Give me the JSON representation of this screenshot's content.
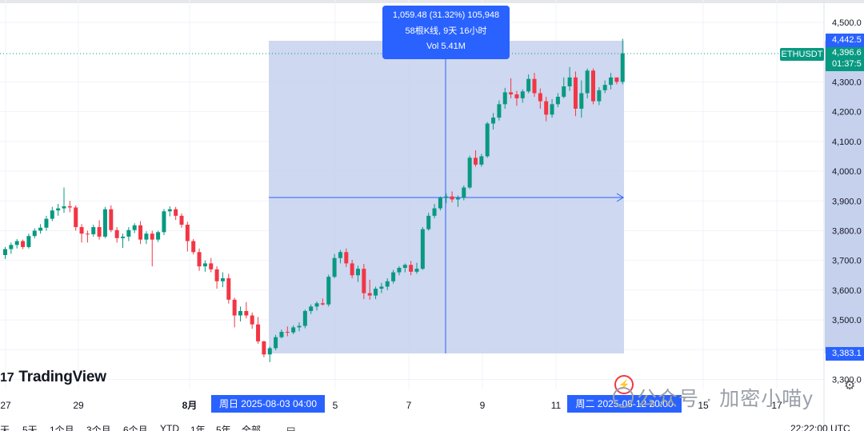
{
  "chart_data": {
    "type": "candlestick",
    "symbol": "ETHUSDT",
    "y_axis": {
      "range": [
        3285,
        4512
      ],
      "ticks": [
        "4,500.0",
        "4,300.0",
        "4,200.0",
        "4,100.0",
        "4,000.0",
        "3,900.0",
        "3,800.0",
        "3,700.0",
        "3,600.0",
        "3,500.0",
        "3,400.0",
        "3,300.0"
      ]
    },
    "x_axis": {
      "ticks": [
        "27",
        "29",
        "8月",
        "5",
        "7",
        "9",
        "11",
        "15",
        "17"
      ]
    },
    "candles": [
      [
        3718,
        3745,
        3705,
        3738
      ],
      [
        3738,
        3760,
        3722,
        3752
      ],
      [
        3752,
        3772,
        3740,
        3765
      ],
      [
        3765,
        3770,
        3738,
        3745
      ],
      [
        3745,
        3790,
        3740,
        3782
      ],
      [
        3782,
        3808,
        3774,
        3800
      ],
      [
        3800,
        3822,
        3790,
        3810
      ],
      [
        3810,
        3850,
        3800,
        3840
      ],
      [
        3840,
        3880,
        3832,
        3868
      ],
      [
        3868,
        3890,
        3850,
        3875
      ],
      [
        3875,
        3945,
        3860,
        3882
      ],
      [
        3882,
        3900,
        3862,
        3878
      ],
      [
        3878,
        3885,
        3800,
        3812
      ],
      [
        3812,
        3822,
        3760,
        3790
      ],
      [
        3790,
        3800,
        3760,
        3788
      ],
      [
        3788,
        3820,
        3780,
        3812
      ],
      [
        3812,
        3835,
        3770,
        3780
      ],
      [
        3780,
        3880,
        3775,
        3872
      ],
      [
        3872,
        3885,
        3795,
        3802
      ],
      [
        3802,
        3812,
        3760,
        3775
      ],
      [
        3775,
        3790,
        3742,
        3780
      ],
      [
        3780,
        3812,
        3765,
        3802
      ],
      [
        3802,
        3825,
        3792,
        3818
      ],
      [
        3818,
        3832,
        3755,
        3770
      ],
      [
        3770,
        3798,
        3755,
        3790
      ],
      [
        3790,
        3800,
        3680,
        3770
      ],
      [
        3770,
        3800,
        3762,
        3795
      ],
      [
        3795,
        3873,
        3785,
        3865
      ],
      [
        3865,
        3882,
        3848,
        3872
      ],
      [
        3872,
        3880,
        3836,
        3850
      ],
      [
        3850,
        3858,
        3810,
        3820
      ],
      [
        3820,
        3830,
        3730,
        3765
      ],
      [
        3765,
        3772,
        3720,
        3728
      ],
      [
        3728,
        3740,
        3665,
        3680
      ],
      [
        3680,
        3700,
        3662,
        3690
      ],
      [
        3690,
        3708,
        3660,
        3670
      ],
      [
        3670,
        3680,
        3605,
        3630
      ],
      [
        3630,
        3660,
        3610,
        3640
      ],
      [
        3640,
        3655,
        3555,
        3568
      ],
      [
        3568,
        3575,
        3475,
        3515
      ],
      [
        3515,
        3545,
        3495,
        3530
      ],
      [
        3530,
        3560,
        3505,
        3515
      ],
      [
        3515,
        3525,
        3470,
        3485
      ],
      [
        3485,
        3510,
        3420,
        3428
      ],
      [
        3428,
        3430,
        3375,
        3384
      ],
      [
        3384,
        3410,
        3358,
        3405
      ],
      [
        3405,
        3450,
        3398,
        3442
      ],
      [
        3442,
        3468,
        3438,
        3460
      ],
      [
        3460,
        3478,
        3445,
        3458
      ],
      [
        3458,
        3482,
        3452,
        3475
      ],
      [
        3475,
        3492,
        3462,
        3480
      ],
      [
        3480,
        3535,
        3472,
        3530
      ],
      [
        3530,
        3552,
        3520,
        3545
      ],
      [
        3545,
        3562,
        3532,
        3556
      ],
      [
        3556,
        3572,
        3548,
        3552
      ],
      [
        3552,
        3652,
        3545,
        3645
      ],
      [
        3645,
        3722,
        3640,
        3708
      ],
      [
        3708,
        3735,
        3690,
        3728
      ],
      [
        3728,
        3740,
        3678,
        3690
      ],
      [
        3690,
        3702,
        3640,
        3650
      ],
      [
        3650,
        3682,
        3628,
        3672
      ],
      [
        3672,
        3688,
        3570,
        3590
      ],
      [
        3590,
        3635,
        3568,
        3582
      ],
      [
        3582,
        3612,
        3570,
        3605
      ],
      [
        3605,
        3625,
        3590,
        3612
      ],
      [
        3612,
        3640,
        3600,
        3630
      ],
      [
        3630,
        3668,
        3622,
        3660
      ],
      [
        3660,
        3680,
        3650,
        3675
      ],
      [
        3675,
        3690,
        3660,
        3685
      ],
      [
        3685,
        3698,
        3650,
        3662
      ],
      [
        3662,
        3692,
        3655,
        3672
      ],
      [
        3672,
        3812,
        3668,
        3805
      ],
      [
        3805,
        3860,
        3800,
        3850
      ],
      [
        3850,
        3890,
        3842,
        3875
      ],
      [
        3875,
        3915,
        3868,
        3910
      ],
      [
        3910,
        3925,
        3892,
        3915
      ],
      [
        3915,
        3932,
        3895,
        3905
      ],
      [
        3905,
        3918,
        3880,
        3910
      ],
      [
        3910,
        3952,
        3902,
        3945
      ],
      [
        3945,
        4052,
        3940,
        4045
      ],
      [
        4045,
        4070,
        4015,
        4022
      ],
      [
        4022,
        4058,
        4015,
        4050
      ],
      [
        4050,
        4165,
        4045,
        4160
      ],
      [
        4160,
        4195,
        4140,
        4180
      ],
      [
        4180,
        4238,
        4170,
        4225
      ],
      [
        4225,
        4280,
        4210,
        4265
      ],
      [
        4265,
        4312,
        4245,
        4258
      ],
      [
        4258,
        4270,
        4220,
        4245
      ],
      [
        4245,
        4275,
        4230,
        4268
      ],
      [
        4268,
        4325,
        4262,
        4310
      ],
      [
        4310,
        4330,
        4250,
        4262
      ],
      [
        4262,
        4278,
        4210,
        4235
      ],
      [
        4235,
        4250,
        4168,
        4190
      ],
      [
        4190,
        4242,
        4180,
        4225
      ],
      [
        4225,
        4262,
        4215,
        4250
      ],
      [
        4250,
        4315,
        4245,
        4285
      ],
      [
        4285,
        4350,
        4270,
        4315
      ],
      [
        4315,
        4335,
        4185,
        4210
      ],
      [
        4210,
        4305,
        4180,
        4262
      ],
      [
        4262,
        4345,
        4245,
        4338
      ],
      [
        4338,
        4345,
        4225,
        4235
      ],
      [
        4235,
        4282,
        4222,
        4272
      ],
      [
        4272,
        4305,
        4262,
        4290
      ],
      [
        4290,
        4330,
        4275,
        4315
      ],
      [
        4315,
        4305,
        4292,
        4300
      ],
      [
        4300,
        4445,
        4292,
        4396
      ]
    ]
  },
  "measure": {
    "line1": "1,059.48 (31.32%) 105,948",
    "line2": "58根K线, 9天 16小时",
    "line3": "Vol 5.41M",
    "start_label": "周日 2025-08-03   04:00",
    "end_label": "周二 2025-08-12   20:00",
    "high_price": "4,442.5",
    "low_price": "3,383.1"
  },
  "last_price": {
    "symbol": "ETHUSDT",
    "price": "4,396.6",
    "countdown": "01:37:5"
  },
  "logo": {
    "text": "TradingView",
    "mark": "17"
  },
  "watermark": {
    "text": "公众号 · 加密小喵y"
  },
  "toolbar": {
    "items": [
      "天",
      "5天",
      "1个月",
      "3个月",
      "6个月",
      "YTD",
      "1年",
      "5年",
      "全部"
    ],
    "time": "22:22:00 UTC"
  },
  "colors": {
    "up": "#089981",
    "down": "#f23645",
    "measure_fill": "#c5d1ed",
    "accent": "#2962ff"
  }
}
